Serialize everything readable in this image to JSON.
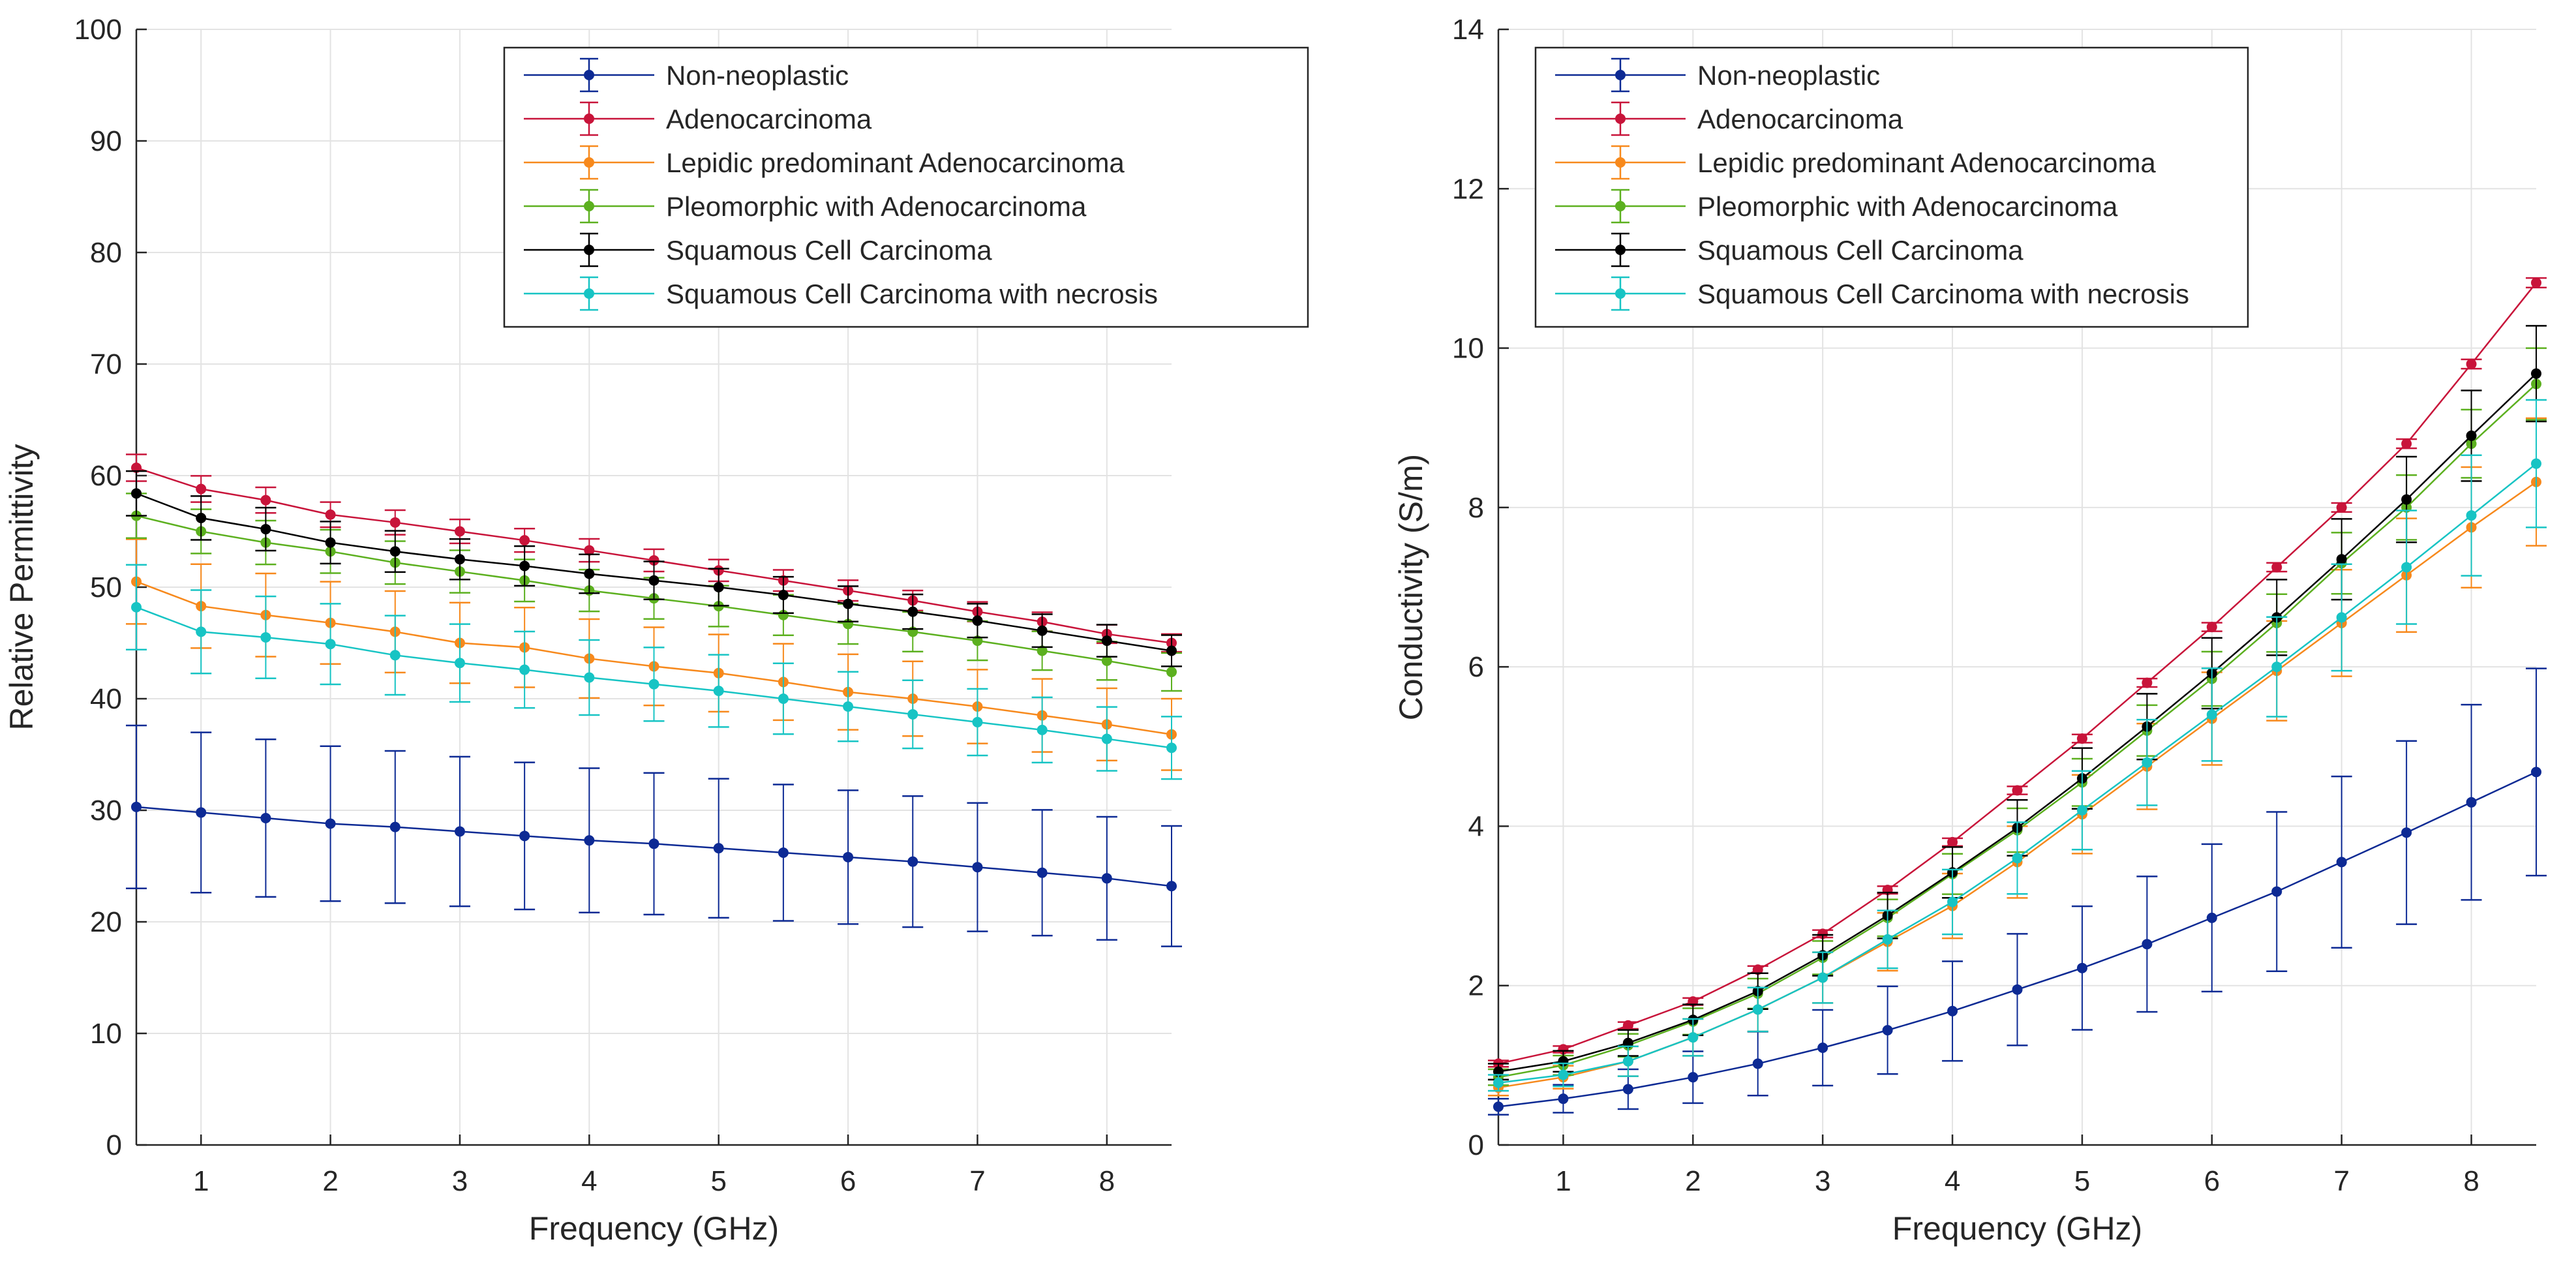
{
  "colors": {
    "Non-neoplastic": "#0d2a94",
    "Adenocarcinoma": "#c8143a",
    "Lepidic predominant Adenocarcinoma": "#f7891c",
    "Pleomorphic with Adenocarcinoma": "#5cb01f",
    "Squamous Cell Carcinoma": "#000000",
    "Squamous Cell Carcinoma with necrosis": "#17c4c4"
  },
  "chart_data": [
    {
      "type": "line",
      "subtype": "errorbar",
      "xlabel": "Frequency (GHz)",
      "ylabel": "Relative Permittivity",
      "xlim": [
        0.5,
        8.5
      ],
      "ylim": [
        0,
        100
      ],
      "xticks": [
        1,
        2,
        3,
        4,
        5,
        6,
        7,
        8
      ],
      "yticks": [
        0,
        10,
        20,
        30,
        40,
        50,
        60,
        70,
        80,
        90,
        100
      ],
      "grid": true,
      "legend_position": "top-right",
      "x": [
        0.5,
        1,
        1.5,
        2,
        2.5,
        3,
        3.5,
        4,
        4.5,
        5,
        5.5,
        6,
        6.5,
        7,
        7.5,
        8,
        8.5
      ],
      "series": [
        {
          "name": "Non-neoplastic",
          "values": [
            30.3,
            29.8,
            29.3,
            28.8,
            28.5,
            28.1,
            27.7,
            27.3,
            27.0,
            26.6,
            26.2,
            25.8,
            25.4,
            24.9,
            24.4,
            23.9,
            23.2
          ],
          "err_start": 7.3,
          "err_end": 5.4
        },
        {
          "name": "Adenocarcinoma",
          "values": [
            60.7,
            58.8,
            57.8,
            56.5,
            55.8,
            55.0,
            54.2,
            53.3,
            52.4,
            51.5,
            50.6,
            49.7,
            48.8,
            47.8,
            46.9,
            45.8,
            45.0
          ],
          "err_start": 1.2,
          "err_end": 0.8
        },
        {
          "name": "Lepidic predominant Adenocarcinoma",
          "values": [
            50.5,
            48.3,
            47.5,
            46.8,
            46.0,
            45.0,
            44.6,
            43.6,
            42.9,
            42.3,
            41.5,
            40.6,
            40.0,
            39.3,
            38.5,
            37.7,
            36.8
          ],
          "err_start": 3.8,
          "err_end": 3.2
        },
        {
          "name": "Pleomorphic with Adenocarcinoma",
          "values": [
            56.4,
            55.0,
            54.0,
            53.2,
            52.2,
            51.4,
            50.6,
            49.7,
            49.0,
            48.3,
            47.5,
            46.7,
            46.0,
            45.2,
            44.3,
            43.4,
            42.4
          ],
          "err_start": 2.0,
          "err_end": 1.7
        },
        {
          "name": "Squamous Cell Carcinoma",
          "values": [
            58.4,
            56.2,
            55.2,
            54.0,
            53.2,
            52.5,
            51.9,
            51.2,
            50.6,
            50.0,
            49.3,
            48.5,
            47.8,
            47.0,
            46.1,
            45.2,
            44.3
          ],
          "err_start": 2.0,
          "err_end": 1.4
        },
        {
          "name": "Squamous Cell Carcinoma with necrosis",
          "values": [
            48.2,
            46.0,
            45.5,
            44.9,
            43.9,
            43.2,
            42.6,
            41.9,
            41.3,
            40.7,
            40.0,
            39.3,
            38.6,
            37.9,
            37.2,
            36.4,
            35.6
          ],
          "err_start": 3.8,
          "err_end": 2.8
        }
      ]
    },
    {
      "type": "line",
      "subtype": "errorbar",
      "xlabel": "Frequency (GHz)",
      "ylabel": "Conductivity (S/m)",
      "xlim": [
        0.5,
        8.5
      ],
      "ylim": [
        0,
        14
      ],
      "xticks": [
        1,
        2,
        3,
        4,
        5,
        6,
        7,
        8
      ],
      "yticks": [
        0,
        2,
        4,
        6,
        8,
        10,
        12,
        14
      ],
      "grid": true,
      "legend_position": "top-left",
      "x": [
        0.5,
        1,
        1.5,
        2,
        2.5,
        3,
        3.5,
        4,
        4.5,
        5,
        5.5,
        6,
        6.5,
        7,
        7.5,
        8,
        8.5
      ],
      "series": [
        {
          "name": "Non-neoplastic",
          "values": [
            0.48,
            0.58,
            0.7,
            0.85,
            1.02,
            1.22,
            1.44,
            1.68,
            1.95,
            2.22,
            2.52,
            2.85,
            3.18,
            3.55,
            3.92,
            4.3,
            4.68
          ],
          "err_start": 0.1,
          "err_end": 1.3
        },
        {
          "name": "Adenocarcinoma",
          "values": [
            1.02,
            1.2,
            1.5,
            1.8,
            2.2,
            2.65,
            3.2,
            3.8,
            4.45,
            5.1,
            5.8,
            6.5,
            7.25,
            8.0,
            8.8,
            9.8,
            10.82
          ],
          "err_start": 0.04,
          "err_end": 0.06
        },
        {
          "name": "Lepidic predominant Adenocarcinoma",
          "values": [
            0.72,
            0.85,
            1.05,
            1.35,
            1.7,
            2.1,
            2.55,
            3.0,
            3.55,
            4.15,
            4.75,
            5.35,
            5.95,
            6.55,
            7.15,
            7.75,
            8.32
          ],
          "err_start": 0.1,
          "err_end": 0.8
        },
        {
          "name": "Pleomorphic with Adenocarcinoma",
          "values": [
            0.85,
            1.0,
            1.25,
            1.55,
            1.9,
            2.35,
            2.85,
            3.4,
            3.95,
            4.55,
            5.2,
            5.85,
            6.55,
            7.3,
            8.0,
            8.8,
            9.55
          ],
          "err_start": 0.1,
          "err_end": 0.45
        },
        {
          "name": "Squamous Cell Carcinoma",
          "values": [
            0.92,
            1.05,
            1.28,
            1.57,
            1.93,
            2.38,
            2.88,
            3.42,
            3.98,
            4.6,
            5.25,
            5.92,
            6.62,
            7.35,
            8.1,
            8.9,
            9.68
          ],
          "err_start": 0.1,
          "err_end": 0.6
        },
        {
          "name": "Squamous Cell Carcinoma with necrosis",
          "values": [
            0.78,
            0.88,
            1.05,
            1.35,
            1.7,
            2.1,
            2.58,
            3.05,
            3.6,
            4.2,
            4.8,
            5.4,
            6.0,
            6.62,
            7.25,
            7.9,
            8.55
          ],
          "err_start": 0.1,
          "err_end": 0.8
        }
      ]
    }
  ]
}
